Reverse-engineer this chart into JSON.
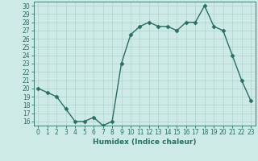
{
  "x": [
    0,
    1,
    2,
    3,
    4,
    5,
    6,
    7,
    8,
    9,
    10,
    11,
    12,
    13,
    14,
    15,
    16,
    17,
    18,
    19,
    20,
    21,
    22,
    23
  ],
  "y": [
    20,
    19.5,
    19,
    17.5,
    16,
    16,
    16.5,
    15.5,
    16,
    23,
    26.5,
    27.5,
    28,
    27.5,
    27.5,
    27,
    28,
    28,
    30,
    27.5,
    27,
    24,
    21,
    18.5
  ],
  "line_color": "#2a6e62",
  "marker": "D",
  "marker_size": 2.5,
  "bg_color": "#ceeae6",
  "grid_color": "#aed4cf",
  "xlabel": "Humidex (Indice chaleur)",
  "xlim": [
    -0.5,
    23.5
  ],
  "ylim": [
    15.5,
    30.5
  ],
  "xticks": [
    0,
    1,
    2,
    3,
    4,
    5,
    6,
    7,
    8,
    9,
    10,
    11,
    12,
    13,
    14,
    15,
    16,
    17,
    18,
    19,
    20,
    21,
    22,
    23
  ],
  "yticks": [
    16,
    17,
    18,
    19,
    20,
    21,
    22,
    23,
    24,
    25,
    26,
    27,
    28,
    29,
    30
  ],
  "tick_label_fontsize": 5.5,
  "xlabel_fontsize": 6.5,
  "line_width": 1.0
}
